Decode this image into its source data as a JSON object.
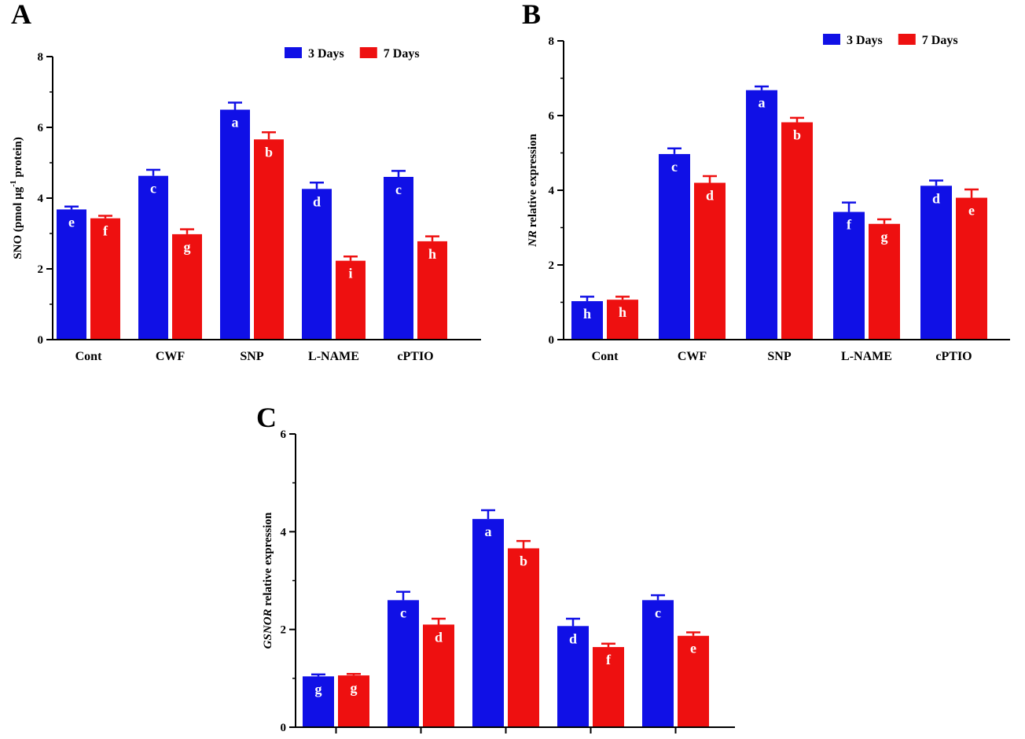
{
  "colors": {
    "series_1": "#1010e6",
    "series_2": "#ee1010",
    "axis": "#000000",
    "sig_letter": "#ffffff"
  },
  "chart_data": [
    {
      "panel_label": "A",
      "type": "bar",
      "categories": [
        "Cont",
        "CWF",
        "SNP",
        "L-NAME",
        "cPTIO"
      ],
      "ylabel": {
        "pre": "SNO (pmol µg",
        "sup": "-1",
        "post": " protein)"
      },
      "ylim": [
        0,
        8
      ],
      "yticks": [
        "0",
        "2",
        "4",
        "6",
        "8"
      ],
      "legend_position": "top-right",
      "grid": false,
      "series": [
        {
          "name": "3 Days",
          "values": [
            3.68,
            4.63,
            6.5,
            4.26,
            4.6
          ],
          "errors": [
            0.08,
            0.17,
            0.2,
            0.18,
            0.17
          ],
          "letters": [
            "e",
            "c",
            "a",
            "d",
            "c"
          ]
        },
        {
          "name": "7 Days",
          "values": [
            3.43,
            2.98,
            5.66,
            2.23,
            2.78
          ],
          "errors": [
            0.07,
            0.14,
            0.2,
            0.12,
            0.14
          ],
          "letters": [
            "f",
            "g",
            "b",
            "i",
            "h"
          ]
        }
      ]
    },
    {
      "panel_label": "B",
      "type": "bar",
      "categories": [
        "Cont",
        "CWF",
        "SNP",
        "L-NAME",
        "cPTIO"
      ],
      "ylabel": {
        "ital": "NR",
        "post": " relative expression"
      },
      "ylim": [
        0,
        8
      ],
      "yticks": [
        "0",
        "2",
        "4",
        "6",
        "8"
      ],
      "legend_position": "top-right",
      "grid": false,
      "series": [
        {
          "name": "3 Days",
          "values": [
            1.03,
            4.97,
            6.68,
            3.42,
            4.12
          ],
          "errors": [
            0.12,
            0.15,
            0.1,
            0.25,
            0.14
          ],
          "letters": [
            "h",
            "c",
            "a",
            "f",
            "d"
          ]
        },
        {
          "name": "7 Days",
          "values": [
            1.07,
            4.2,
            5.82,
            3.1,
            3.8
          ],
          "errors": [
            0.08,
            0.18,
            0.12,
            0.12,
            0.22
          ],
          "letters": [
            "h",
            "d",
            "b",
            "g",
            "e"
          ]
        }
      ]
    },
    {
      "panel_label": "C",
      "type": "bar",
      "categories": [
        "",
        "",
        "",
        "",
        ""
      ],
      "ylabel": {
        "ital": "GSNOR",
        "post": " relative expression"
      },
      "ylim": [
        0,
        6
      ],
      "yticks": [
        "0",
        "2",
        "4",
        "6"
      ],
      "legend_position": "none",
      "grid": false,
      "series": [
        {
          "name": "3 Days",
          "values": [
            1.04,
            2.6,
            4.26,
            2.07,
            2.6
          ],
          "errors": [
            0.04,
            0.17,
            0.18,
            0.15,
            0.1
          ],
          "letters": [
            "g",
            "c",
            "a",
            "d",
            "c"
          ]
        },
        {
          "name": "7 Days",
          "values": [
            1.06,
            2.1,
            3.66,
            1.64,
            1.87
          ],
          "errors": [
            0.03,
            0.12,
            0.15,
            0.07,
            0.07
          ],
          "letters": [
            "g",
            "d",
            "b",
            "f",
            "e"
          ]
        }
      ]
    }
  ]
}
